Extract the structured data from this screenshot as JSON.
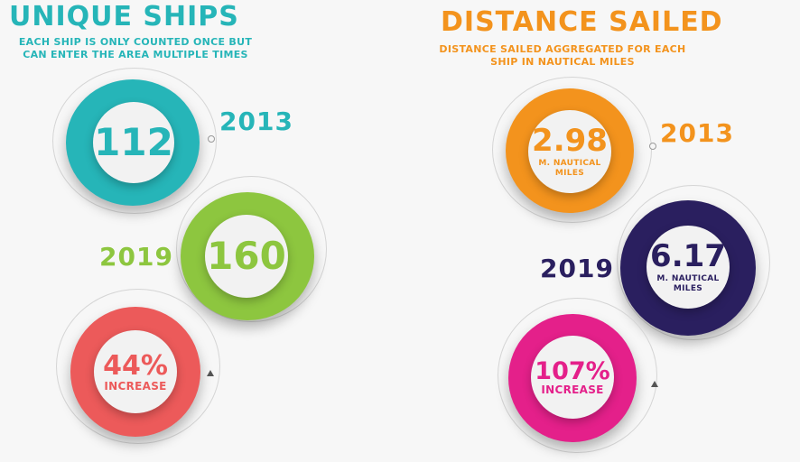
{
  "colors": {
    "teal": "#26b5b8",
    "green": "#8dc63f",
    "red": "#ec5a5a",
    "orange": "#f3931d",
    "navy": "#2a1f5f",
    "pink": "#e4208a"
  },
  "left": {
    "title": "UNIQUE SHIPS",
    "subtitle_line1": "EACH SHIP IS ONLY COUNTED ONCE BUT",
    "subtitle_line2": "CAN ENTER THE AREA MULTIPLE TIMES",
    "stat_2013": {
      "year": "2013",
      "value": "112"
    },
    "stat_2019": {
      "year": "2019",
      "value": "160"
    },
    "increase": {
      "value": "44%",
      "label": "INCREASE"
    }
  },
  "right": {
    "title": "DISTANCE SAILED",
    "subtitle_line1": "DISTANCE SAILED AGGREGATED FOR EACH",
    "subtitle_line2": "SHIP IN NAUTICAL MILES",
    "stat_2013": {
      "year": "2013",
      "value": "2.98",
      "unit_line1": "M. NAUTICAL",
      "unit_line2": "MILES"
    },
    "stat_2019": {
      "year": "2019",
      "value": "6.17",
      "unit_line1": "M. NAUTICAL",
      "unit_line2": "MILES"
    },
    "increase": {
      "value": "107%",
      "label": "INCREASE"
    }
  }
}
